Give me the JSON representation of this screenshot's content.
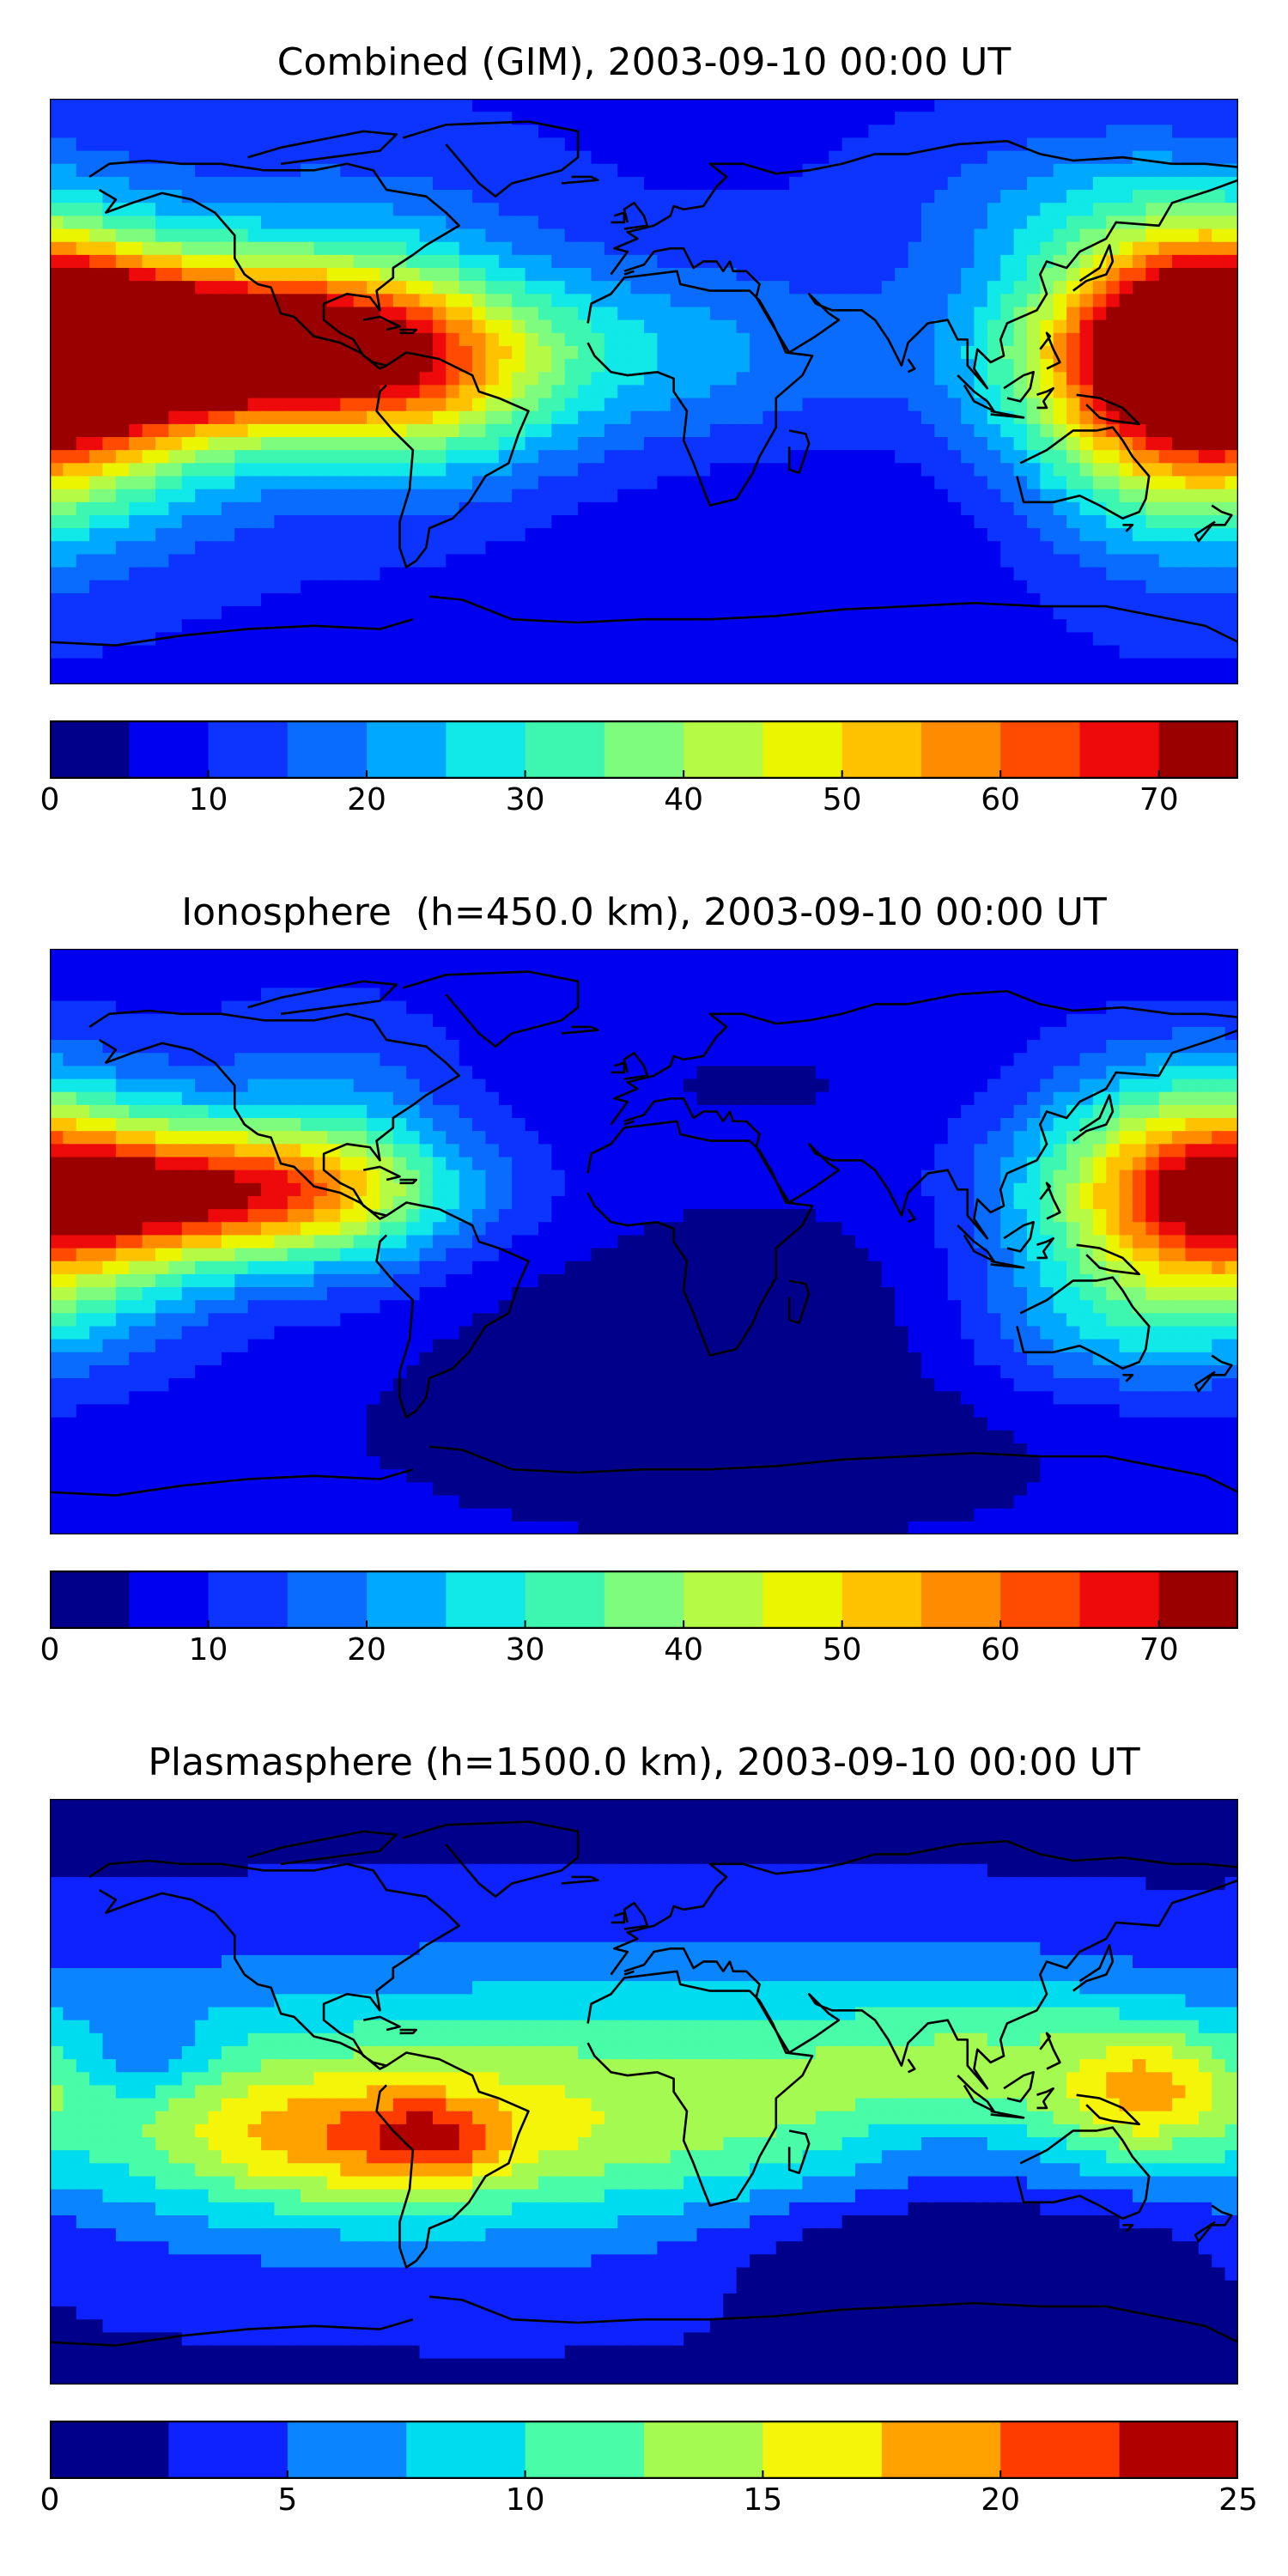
{
  "colors": {
    "levels15": [
      "#00008b",
      "#0000f0",
      "#0d34ff",
      "#0a6cff",
      "#00a8ff",
      "#11e8e8",
      "#3df6b0",
      "#7dfc7d",
      "#b5fa44",
      "#ecf500",
      "#ffc200",
      "#ff8c00",
      "#ff4b00",
      "#ee0a0a",
      "#9a0000"
    ],
    "levels10": [
      "#00008b",
      "#0d22ff",
      "#0a84ff",
      "#00dcef",
      "#49fca7",
      "#a5fa51",
      "#f5f50a",
      "#ffa200",
      "#ff3c00",
      "#b00000"
    ],
    "coastline": "#000000"
  },
  "chart_data": [
    {
      "type": "heatmap",
      "title": "Combined (GIM), 2003-09-10 00:00 UT",
      "xlim": [
        -180,
        180
      ],
      "ylim": [
        -90,
        90
      ],
      "colorbar": {
        "min": 0,
        "max": 75,
        "step": 5,
        "ticks": [
          "0",
          "10",
          "20",
          "30",
          "40",
          "50",
          "60",
          "70"
        ],
        "tick_values": [
          0,
          10,
          20,
          30,
          40,
          50,
          60,
          70
        ]
      },
      "base": 9,
      "features": [
        {
          "lon": -130,
          "lat": 14,
          "value": 62,
          "slon": 60,
          "slat": 16
        },
        {
          "lon": -170,
          "lat": 5,
          "value": 22,
          "slon": 40,
          "slat": 26
        },
        {
          "lon": -90,
          "lat": 20,
          "value": 20,
          "slon": 40,
          "slat": 30
        },
        {
          "lon": -65,
          "lat": -5,
          "value": 16,
          "slon": 30,
          "slat": 18
        },
        {
          "lon": 165,
          "lat": 0,
          "value": 50,
          "slon": 35,
          "slat": 30
        },
        {
          "lon": 175,
          "lat": 28,
          "value": 18,
          "slon": 25,
          "slat": 18
        },
        {
          "lon": 140,
          "lat": 55,
          "value": 12,
          "slon": 40,
          "slat": 18
        },
        {
          "lon": 20,
          "lat": 10,
          "value": 10,
          "slon": 40,
          "slat": 22
        },
        {
          "lon": 60,
          "lat": -40,
          "value": -4,
          "slon": 60,
          "slat": 22
        }
      ]
    },
    {
      "type": "heatmap",
      "title": "Ionosphere  (h=450.0 km), 2003-09-10 00:00 UT",
      "xlim": [
        -180,
        180
      ],
      "ylim": [
        -90,
        90
      ],
      "colorbar": {
        "min": 0,
        "max": 75,
        "step": 5,
        "ticks": [
          "0",
          "10",
          "20",
          "30",
          "40",
          "50",
          "60",
          "70"
        ],
        "tick_values": [
          0,
          10,
          20,
          30,
          40,
          50,
          60,
          70
        ]
      },
      "base": 7,
      "features": [
        {
          "lon": -130,
          "lat": 15,
          "value": 50,
          "slon": 45,
          "slat": 14
        },
        {
          "lon": -170,
          "lat": 5,
          "value": 15,
          "slon": 30,
          "slat": 26
        },
        {
          "lon": -95,
          "lat": 25,
          "value": 15,
          "slon": 30,
          "slat": 30
        },
        {
          "lon": 160,
          "lat": 10,
          "value": 40,
          "slon": 35,
          "slat": 28
        },
        {
          "lon": 170,
          "lat": 30,
          "value": 8,
          "slon": 25,
          "slat": 18
        },
        {
          "lon": 130,
          "lat": -30,
          "value": 8,
          "slon": 30,
          "slat": 14
        },
        {
          "lon": 30,
          "lat": -40,
          "value": -6,
          "slon": 90,
          "slat": 35
        },
        {
          "lon": 40,
          "lat": 50,
          "value": -2,
          "slon": 60,
          "slat": 15
        }
      ]
    },
    {
      "type": "heatmap",
      "title": "Plasmasphere (h=1500.0 km), 2003-09-10 00:00 UT",
      "xlim": [
        -180,
        180
      ],
      "ylim": [
        -90,
        90
      ],
      "colorbar": {
        "min": 0,
        "max": 25,
        "step": 2.5,
        "ticks": [
          "0",
          "5",
          "10",
          "15",
          "20",
          "25"
        ],
        "tick_values": [
          0,
          5,
          10,
          15,
          20,
          25
        ]
      },
      "base": 2,
      "features": [
        {
          "lon": -20,
          "lat": -5,
          "value": 12,
          "slon": 150,
          "slat": 30
        },
        {
          "lon": -90,
          "lat": -15,
          "value": 8,
          "slon": 40,
          "slat": 14
        },
        {
          "lon": -65,
          "lat": -15,
          "value": 5,
          "slon": 12,
          "slat": 8
        },
        {
          "lon": 155,
          "lat": 0,
          "value": 9,
          "slon": 18,
          "slat": 14
        },
        {
          "lon": 110,
          "lat": 10,
          "value": 4,
          "slon": 40,
          "slat": 20
        },
        {
          "lon": -150,
          "lat": 10,
          "value": -4,
          "slon": 12,
          "slat": 8
        },
        {
          "lon": 90,
          "lat": -15,
          "value": -4,
          "slon": 25,
          "slat": 10
        },
        {
          "lon": 90,
          "lat": -45,
          "value": -6,
          "slon": 50,
          "slat": 15
        }
      ]
    }
  ]
}
